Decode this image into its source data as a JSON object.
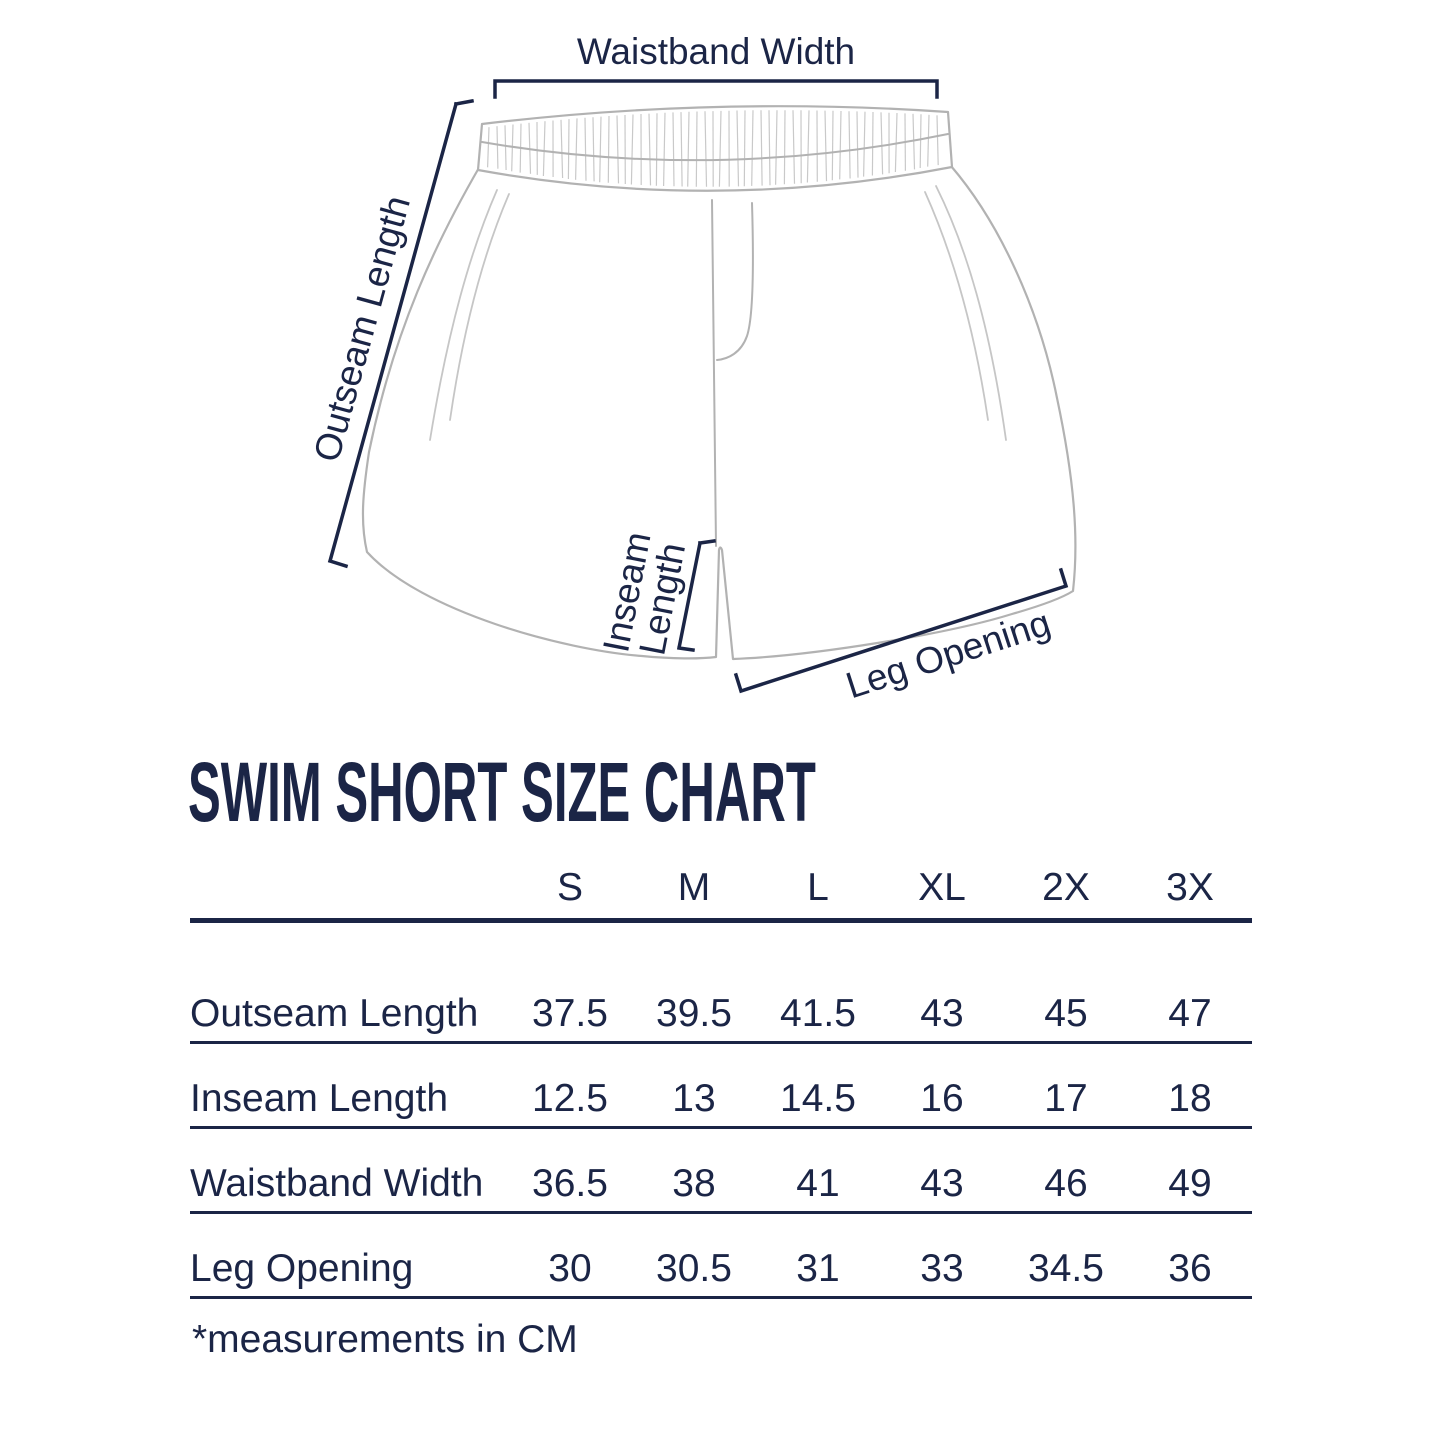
{
  "page": {
    "background": "#ffffff"
  },
  "colors": {
    "text_navy": "#1b2546",
    "garment_outline_gray": "#b2b2b2",
    "rib_gray": "#c9c9c9"
  },
  "diagram": {
    "labels": {
      "waistband_width": "Waistband Width",
      "outseam_length": "Outseam Length",
      "inseam_line1": "Inseam",
      "inseam_line2": "Length",
      "leg_opening": "Leg Opening"
    }
  },
  "title": "SWIM SHORT SIZE CHART",
  "chart_data": {
    "type": "table",
    "title": "SWIM SHORT SIZE CHART",
    "columns": [
      "S",
      "M",
      "L",
      "XL",
      "2X",
      "3X"
    ],
    "rows": [
      {
        "label": "Outseam Length",
        "values": [
          "37.5",
          "39.5",
          "41.5",
          "43",
          "45",
          "47"
        ]
      },
      {
        "label": "Inseam Length",
        "values": [
          "12.5",
          "13",
          "14.5",
          "16",
          "17",
          "18"
        ]
      },
      {
        "label": "Waistband Width",
        "values": [
          "36.5",
          "38",
          "41",
          "43",
          "46",
          "49"
        ]
      },
      {
        "label": "Leg Opening",
        "values": [
          "30",
          "30.5",
          "31",
          "33",
          "34.5",
          "36"
        ]
      }
    ],
    "units_note": "*measurements in CM"
  },
  "footnote": "*measurements in CM"
}
